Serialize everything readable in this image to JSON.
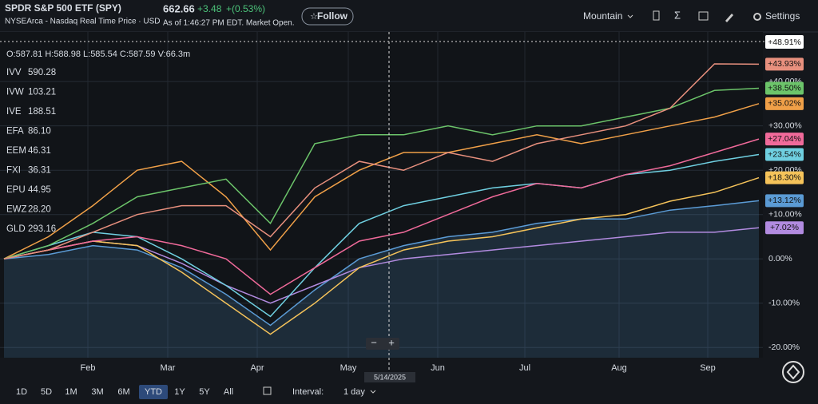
{
  "header": {
    "title": "SPDR S&P 500 ETF (SPY)",
    "exchange": "NYSEArca - Nasdaq Real Time Price · USD",
    "price": "662.66",
    "change": "+3.48",
    "change_pct": "+(0.53%)",
    "as_of": "As of 1:46:27 PM EDT. Market Open.",
    "follow": "Follow",
    "chart_style": "Mountain",
    "settings": "Settings"
  },
  "ohlc": "O:587.81 H:588.98 L:585.54 C:587.59 V:66.3m",
  "legend": [
    {
      "name": "IVV",
      "price": "590.28",
      "color": "#7fb3e8"
    },
    {
      "name": "IVW",
      "price": "103.21",
      "color": "#f2b45c"
    },
    {
      "name": "IVE",
      "price": "188.51",
      "color": "#b28be0"
    },
    {
      "name": "EFA",
      "price": "86.10",
      "color": "#cfd6e0"
    },
    {
      "name": "EEM",
      "price": "46.31",
      "color": "#f07a8c"
    },
    {
      "name": "FXI",
      "price": "36.31",
      "color": "#f0a048"
    },
    {
      "name": "EPU",
      "price": "44.95",
      "color": "#9aa3ad"
    },
    {
      "name": "EWZ",
      "price": "28.20",
      "color": "#9aa3ad"
    },
    {
      "name": "GLD",
      "price": "293.16",
      "color": "#9aa3ad"
    }
  ],
  "crosshair": {
    "date": "5/14/2025",
    "label": "+48.91%"
  },
  "chart_data": {
    "type": "line",
    "ylim": [
      -22.3,
      51.2
    ],
    "yticks": [
      {
        "value": -20,
        "label": "-20.00%"
      },
      {
        "value": -10,
        "label": "-10.00%"
      },
      {
        "value": 0,
        "label": "0.00%"
      },
      {
        "value": 10,
        "label": "+10.00%"
      },
      {
        "value": 20,
        "label": "+20.00%"
      },
      {
        "value": 30,
        "label": "+30.00%"
      },
      {
        "value": 40,
        "label": "+40.00%"
      }
    ],
    "months": [
      "Feb",
      "Mar",
      "Apr",
      "May",
      "Jun",
      "Jul",
      "Aug",
      "Sep"
    ],
    "series": [
      {
        "color": "#5b9bd5",
        "area": true,
        "label": "+13.12%",
        "values": [
          0,
          1,
          3,
          2,
          -2,
          -8,
          -15,
          -7,
          0,
          3,
          5,
          6,
          8,
          9,
          9,
          11,
          12,
          13.12
        ]
      },
      {
        "color": "#b28be0",
        "label": "+7.02%",
        "values": [
          0,
          2,
          4,
          3,
          -1,
          -6,
          -10,
          -6,
          -2,
          0,
          1,
          2,
          3,
          4,
          5,
          6,
          6,
          7.02
        ]
      },
      {
        "color": "#f5c35a",
        "label": "+18.30%",
        "values": [
          0,
          2,
          4,
          3,
          -3,
          -10,
          -17,
          -10,
          -2,
          2,
          4,
          5,
          7,
          9,
          10,
          13,
          15,
          18.3
        ]
      },
      {
        "color": "#6fcfe0",
        "label": "+23.54%",
        "values": [
          0,
          3,
          6,
          5,
          0,
          -6,
          -13,
          -2,
          8,
          12,
          14,
          16,
          17,
          16,
          19,
          20,
          22,
          23.54
        ]
      },
      {
        "color": "#f06a9a",
        "label": "+27.04%",
        "values": [
          0,
          2,
          4,
          5,
          3,
          0,
          -8,
          -2,
          4,
          6,
          10,
          14,
          17,
          16,
          19,
          21,
          24,
          27.04
        ]
      },
      {
        "color": "#f0a048",
        "label": "+35.02%",
        "values": [
          0,
          5,
          12,
          20,
          22,
          14,
          2,
          14,
          20,
          24,
          24,
          26,
          28,
          26,
          28,
          30,
          32,
          35.02
        ]
      },
      {
        "color": "#6cc46a",
        "label": "+38.50%",
        "values": [
          0,
          3,
          8,
          14,
          16,
          18,
          8,
          26,
          28,
          28,
          30,
          28,
          30,
          30,
          32,
          34,
          38,
          38.5
        ]
      },
      {
        "color": "#e8907e",
        "label": "+43.93%",
        "values": [
          0,
          2,
          6,
          10,
          12,
          12,
          5,
          16,
          22,
          20,
          24,
          22,
          26,
          28,
          30,
          34,
          44,
          43.93
        ]
      }
    ]
  },
  "footer": {
    "ranges": [
      "1D",
      "5D",
      "1M",
      "3M",
      "6M",
      "YTD",
      "1Y",
      "5Y",
      "All"
    ],
    "active": "YTD",
    "interval_label": "Interval:",
    "interval": "1 day"
  }
}
